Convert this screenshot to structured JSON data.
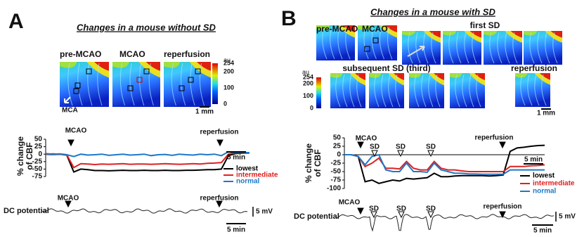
{
  "panels": [
    {
      "label": "A",
      "title": "Changes in a mouse without SD",
      "images": [
        "pre-MCAO",
        "MCAO",
        "reperfusion"
      ],
      "colorbar": {
        "unit": "au",
        "ticks": [
          254,
          200,
          100,
          0
        ]
      },
      "vessel": "MCA",
      "scale": "1 mm",
      "cbf": {
        "type": "line",
        "ylabel": [
          "% change",
          "of CBF"
        ],
        "ylim": [
          -75,
          50
        ],
        "yticks": [
          50,
          25,
          0,
          -25,
          -50,
          -75
        ],
        "events": [
          "MCAO",
          "reperfusion"
        ],
        "time_scale": "5 min",
        "series": [
          {
            "name": "lowest",
            "color": "#000000",
            "values": [
              0,
              -1,
              0,
              -3,
              -60,
              -50,
              -52,
              -55,
              -55,
              -56,
              -55,
              -54,
              -55,
              -55,
              -54,
              -55,
              -55,
              -54,
              -55,
              -55,
              -54,
              -54,
              -53,
              -52,
              -52,
              -50,
              -5,
              2,
              3,
              4
            ]
          },
          {
            "name": "intermediate",
            "color": "#e02020",
            "values": [
              0,
              1,
              0,
              -2,
              -45,
              -32,
              -33,
              -35,
              -33,
              -34,
              -33,
              -32,
              -34,
              -33,
              -33,
              -34,
              -33,
              -32,
              -33,
              -34,
              -33,
              -32,
              -33,
              -31,
              -30,
              -28,
              0,
              5,
              4,
              5
            ]
          },
          {
            "name": "normal",
            "color": "#1f78c8",
            "values": [
              2,
              0,
              1,
              -2,
              -8,
              0,
              -3,
              -2,
              0,
              -4,
              -2,
              0,
              -3,
              -2,
              0,
              -5,
              -2,
              -1,
              -4,
              0,
              -2,
              -3,
              0,
              -2,
              0,
              -5,
              8,
              5,
              6,
              5
            ]
          }
        ]
      },
      "dc": {
        "label": "DC potential",
        "events": [
          "MCAO",
          "reperfusion"
        ],
        "amplitude": "5 mV",
        "time_scale": "5 min"
      }
    },
    {
      "label": "B",
      "title": "Changes in a mouse with SD",
      "images": [
        "pre-MCAO",
        "MCAO",
        "first SD",
        "subsequent SD (third)",
        "reperfusion"
      ],
      "colorbar": {
        "unit": "au",
        "ticks": [
          254,
          200,
          100,
          0
        ]
      },
      "scale": "1 mm",
      "cbf": {
        "type": "line",
        "ylabel": [
          "% change",
          "of CBF"
        ],
        "ylim": [
          -100,
          50
        ],
        "yticks": [
          50,
          25,
          0,
          -25,
          -50,
          -75,
          -100
        ],
        "events": [
          "MCAO",
          "SD",
          "SD",
          "SD",
          "reperfusion"
        ],
        "time_scale": "5 min",
        "series": [
          {
            "name": "lowest",
            "color": "#000000",
            "values": [
              0,
              0,
              -5,
              -80,
              -75,
              -85,
              -80,
              -75,
              -78,
              -70,
              -72,
              -70,
              -68,
              -55,
              -65,
              -65,
              -63,
              -62,
              -62,
              -62,
              -62,
              -63,
              -62,
              -60,
              10,
              20,
              22,
              25,
              27,
              28
            ]
          },
          {
            "name": "intermediate",
            "color": "#e02020",
            "values": [
              0,
              0,
              -5,
              -35,
              -25,
              -10,
              -40,
              -40,
              -42,
              -20,
              -40,
              -45,
              -45,
              -20,
              -40,
              -45,
              -45,
              -48,
              -50,
              -50,
              -50,
              -50,
              -50,
              -50,
              -35,
              -35,
              -35,
              -33,
              -32,
              -30
            ]
          },
          {
            "name": "normal",
            "color": "#1f78c8",
            "values": [
              0,
              0,
              -5,
              -30,
              -5,
              0,
              -45,
              -50,
              -50,
              -25,
              -50,
              -50,
              -52,
              -25,
              -45,
              -50,
              -55,
              -55,
              -57,
              -57,
              -58,
              -58,
              -58,
              -58,
              -45,
              -45,
              -45,
              -45,
              -45,
              -45
            ]
          }
        ]
      },
      "dc": {
        "label": "DC potential",
        "events": [
          "MCAO",
          "SD",
          "SD",
          "SD",
          "reperfusion"
        ],
        "amplitude": "5 mV",
        "time_scale": "5 min"
      }
    }
  ]
}
